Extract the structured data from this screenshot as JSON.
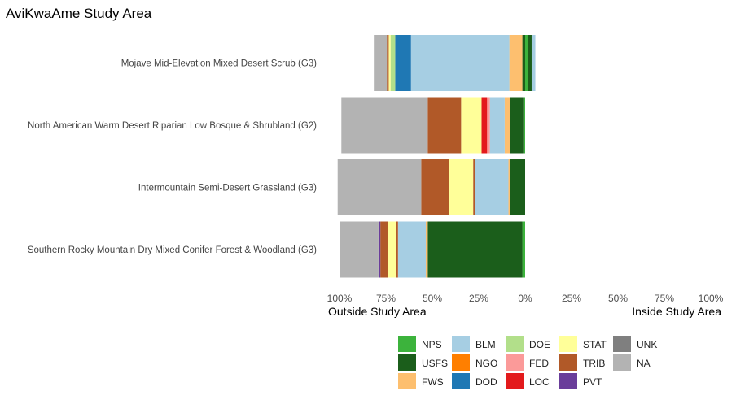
{
  "chart_data": {
    "type": "bar",
    "orientation": "horizontal",
    "stacked": true,
    "title": "AviKwaAme Study Area",
    "categories": [
      "Mojave Mid-Elevation Mixed Desert Scrub (G3)",
      "North American Warm Desert Riparian Low Bosque & Shrubland (G2)",
      "Intermountain Semi-Desert Grassland (G3)",
      "Southern Rocky Mountain Dry Mixed Conifer Forest & Woodland (G3)"
    ],
    "x_ticks": [
      "100%",
      "75%",
      "50%",
      "25%",
      "0%",
      "25%",
      "50%",
      "75%",
      "100%"
    ],
    "x_range": [
      -1,
      1
    ],
    "left_axis_label": "Outside Study Area",
    "right_axis_label": "Inside Study Area",
    "grid": false,
    "legend_position": "bottom-right",
    "legend": [
      {
        "key": "NPS",
        "color": "#3cb33c"
      },
      {
        "key": "USFS",
        "color": "#1b5e1b"
      },
      {
        "key": "FWS",
        "color": "#fdbf6f"
      },
      {
        "key": "BLM",
        "color": "#a6cee3"
      },
      {
        "key": "NGO",
        "color": "#ff7f00"
      },
      {
        "key": "DOD",
        "color": "#1f78b4"
      },
      {
        "key": "DOE",
        "color": "#b2df8a"
      },
      {
        "key": "FED",
        "color": "#fb9a99"
      },
      {
        "key": "LOC",
        "color": "#e31a1c"
      },
      {
        "key": "STAT",
        "color": "#ffff99"
      },
      {
        "key": "TRIB",
        "color": "#b15928"
      },
      {
        "key": "PVT",
        "color": "#6a3d9a"
      },
      {
        "key": "UNK",
        "color": "#7f7f7f"
      },
      {
        "key": "NA",
        "color": "#b3b3b3"
      }
    ],
    "bars": [
      {
        "category": "Mojave Mid-Elevation Mixed Desert Scrub (G3)",
        "outside": [
          {
            "key": "USFS",
            "value": 0.015
          },
          {
            "key": "FWS",
            "value": 0.07
          },
          {
            "key": "BLM",
            "value": 0.53
          },
          {
            "key": "DOD",
            "value": 0.085
          },
          {
            "key": "DOE",
            "value": 0.025
          },
          {
            "key": "STAT",
            "value": 0.01
          },
          {
            "key": "TRIB",
            "value": 0.01
          },
          {
            "key": "NA",
            "value": 0.07
          }
        ],
        "inside": [
          {
            "key": "NPS",
            "value": 0.015
          },
          {
            "key": "USFS",
            "value": 0.02
          },
          {
            "key": "BLM",
            "value": 0.02
          }
        ]
      },
      {
        "category": "North American Warm Desert Riparian Low Bosque & Shrubland (G2)",
        "outside": [
          {
            "key": "NPS",
            "value": 0.01
          },
          {
            "key": "USFS",
            "value": 0.07
          },
          {
            "key": "FWS",
            "value": 0.03
          },
          {
            "key": "BLM",
            "value": 0.08
          },
          {
            "key": "FED",
            "value": 0.015
          },
          {
            "key": "LOC",
            "value": 0.03
          },
          {
            "key": "STAT",
            "value": 0.11
          },
          {
            "key": "TRIB",
            "value": 0.18
          },
          {
            "key": "NA",
            "value": 0.465
          }
        ],
        "inside": []
      },
      {
        "category": "Intermountain Semi-Desert Grassland (G3)",
        "outside": [
          {
            "key": "USFS",
            "value": 0.08
          },
          {
            "key": "FWS",
            "value": 0.01
          },
          {
            "key": "BLM",
            "value": 0.18
          },
          {
            "key": "TRIB",
            "value": 0.01
          },
          {
            "key": "STAT",
            "value": 0.13
          },
          {
            "key": "TRIB",
            "value": 0.15
          },
          {
            "key": "NA",
            "value": 0.45
          }
        ],
        "inside": []
      },
      {
        "category": "Southern Rocky Mountain Dry Mixed Conifer Forest & Woodland (G3)",
        "outside": [
          {
            "key": "NPS",
            "value": 0.015
          },
          {
            "key": "USFS",
            "value": 0.51
          },
          {
            "key": "FWS",
            "value": 0.01
          },
          {
            "key": "BLM",
            "value": 0.15
          },
          {
            "key": "TRIB",
            "value": 0.01
          },
          {
            "key": "STAT",
            "value": 0.045
          },
          {
            "key": "TRIB",
            "value": 0.04
          },
          {
            "key": "PVT",
            "value": 0.01
          },
          {
            "key": "NA",
            "value": 0.21
          }
        ],
        "inside": []
      }
    ]
  }
}
